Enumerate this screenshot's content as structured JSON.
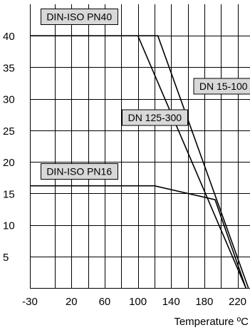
{
  "chart_data": {
    "type": "line",
    "title": "",
    "xlabel": "Temperature ºC",
    "ylabel": "",
    "xlim": [
      -30,
      235
    ],
    "ylim": [
      0,
      45
    ],
    "x_ticks": [
      {
        "value": -30,
        "label": "-30"
      },
      {
        "value": 20,
        "label": "20"
      },
      {
        "value": 60,
        "label": "60"
      },
      {
        "value": 100,
        "label": "100"
      },
      {
        "value": 140,
        "label": "140"
      },
      {
        "value": 180,
        "label": "180"
      },
      {
        "value": 220,
        "label": "220"
      }
    ],
    "x_grid": [
      -30,
      0,
      20,
      40,
      60,
      80,
      100,
      120,
      140,
      160,
      180,
      200,
      220
    ],
    "y_ticks": [
      {
        "value": 5,
        "label": "5"
      },
      {
        "value": 10,
        "label": "10"
      },
      {
        "value": 15,
        "label": "15"
      },
      {
        "value": 20,
        "label": "20"
      },
      {
        "value": 25,
        "label": "25"
      },
      {
        "value": 30,
        "label": "30"
      },
      {
        "value": 35,
        "label": "35"
      },
      {
        "value": 40,
        "label": "40"
      }
    ],
    "y_grid": [
      5,
      10,
      15,
      20,
      25,
      30,
      35,
      40
    ],
    "grid": true,
    "series": [
      {
        "name": "DIN-ISO PN40",
        "points": [
          [
            -30,
            40
          ],
          [
            100,
            40
          ]
        ]
      },
      {
        "name": "DN 15-100",
        "points": [
          [
            100,
            40
          ],
          [
            124,
            40
          ],
          [
            233,
            0
          ]
        ]
      },
      {
        "name": "DN 125-300",
        "points": [
          [
            100,
            40
          ],
          [
            230,
            0
          ]
        ]
      },
      {
        "name": "DIN-ISO PN16",
        "points": [
          [
            -30,
            16.2
          ],
          [
            120,
            16.2
          ],
          [
            193,
            14
          ],
          [
            230,
            0
          ]
        ]
      }
    ],
    "labels": [
      {
        "text": "DIN-ISO PN40",
        "at": [
          -10,
          43
        ]
      },
      {
        "text": "DN 15-100",
        "at": [
          174,
          32
        ]
      },
      {
        "text": "DN 125-300",
        "at": [
          88,
          27
        ]
      },
      {
        "text": "DIN-ISO PN16",
        "at": [
          -10,
          18.5
        ]
      }
    ],
    "legend": "inline-labels"
  }
}
